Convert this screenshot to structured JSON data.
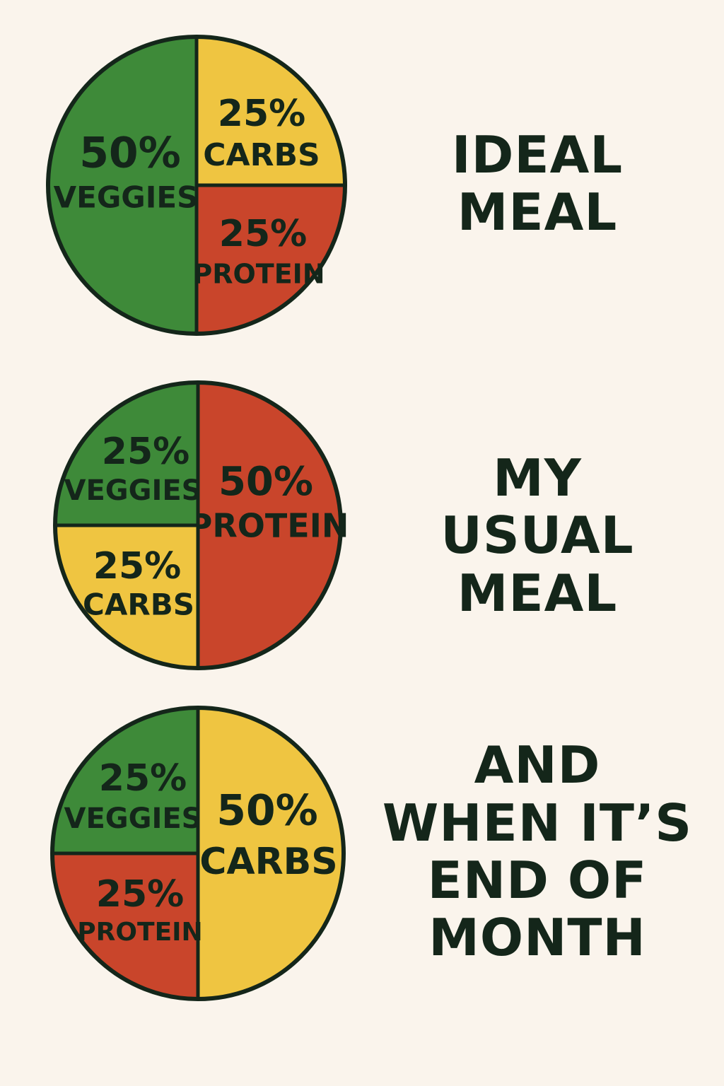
{
  "colors": {
    "background": "#faf4ec",
    "veggies": "#3e8a39",
    "carbs": "#efc541",
    "protein": "#c9452b",
    "outline": "#14261a",
    "text": "#14261a"
  },
  "chart_data": [
    {
      "type": "pie",
      "slices": [
        {
          "label": "VEGGIES",
          "value": 50,
          "value_label": "50%",
          "color": "#3e8a39"
        },
        {
          "label": "CARBS",
          "value": 25,
          "value_label": "25%",
          "color": "#efc541"
        },
        {
          "label": "PROTEIN",
          "value": 25,
          "value_label": "25%",
          "color": "#c9452b"
        }
      ],
      "caption": [
        "IDEAL",
        "MEAL"
      ]
    },
    {
      "type": "pie",
      "slices": [
        {
          "label": "PROTEIN",
          "value": 50,
          "value_label": "50%",
          "color": "#c9452b"
        },
        {
          "label": "VEGGIES",
          "value": 25,
          "value_label": "25%",
          "color": "#3e8a39"
        },
        {
          "label": "CARBS",
          "value": 25,
          "value_label": "25%",
          "color": "#efc541"
        }
      ],
      "caption": [
        "MY",
        "USUAL",
        "MEAL"
      ]
    },
    {
      "type": "pie",
      "slices": [
        {
          "label": "CARBS",
          "value": 50,
          "value_label": "50%",
          "color": "#efc541"
        },
        {
          "label": "VEGGIES",
          "value": 25,
          "value_label": "25%",
          "color": "#3e8a39"
        },
        {
          "label": "PROTEIN",
          "value": 25,
          "value_label": "25%",
          "color": "#c9452b"
        }
      ],
      "caption": [
        "AND",
        "WHEN IT’S",
        "END OF",
        "MONTH"
      ]
    }
  ]
}
